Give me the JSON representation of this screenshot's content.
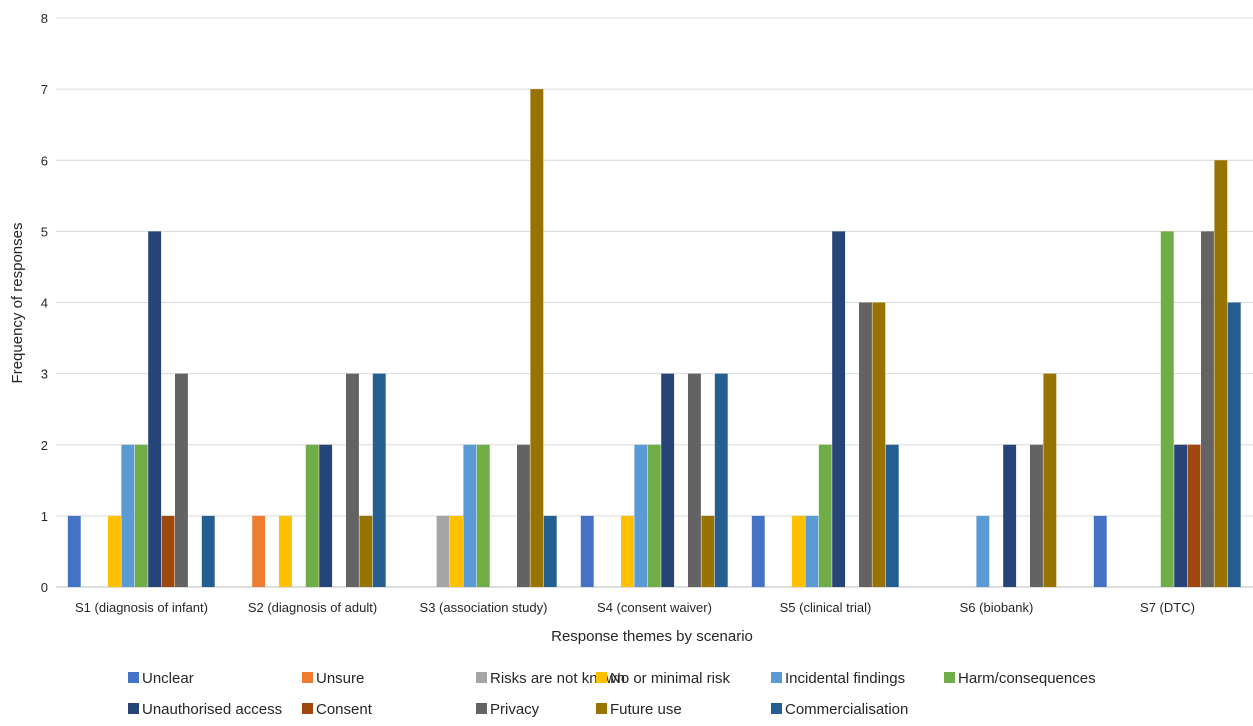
{
  "chart_data": {
    "type": "bar",
    "title": "",
    "xlabel": "Response themes by scenario",
    "ylabel": "Frequency of responses",
    "ylim": [
      0,
      8
    ],
    "yticks": [
      0,
      1,
      2,
      3,
      4,
      5,
      6,
      7,
      8
    ],
    "grid": true,
    "legend_position": "bottom",
    "categories": [
      "S1 (diagnosis of infant)",
      "S2 (diagnosis of adult)",
      "S3 (association study)",
      "S4 (consent waiver)",
      "S5 (clinical trial)",
      "S6 (biobank)",
      "S7 (DTC)"
    ],
    "series": [
      {
        "name": "Unclear",
        "color": "#4472C4",
        "values": [
          1,
          0,
          0,
          1,
          1,
          0,
          1
        ]
      },
      {
        "name": "Unsure",
        "color": "#ED7D31",
        "values": [
          0,
          1,
          0,
          0,
          0,
          0,
          0
        ]
      },
      {
        "name": "Risks are not known",
        "color": "#A5A5A5",
        "values": [
          0,
          0,
          1,
          0,
          0,
          0,
          0
        ]
      },
      {
        "name": "No or minimal risk",
        "color": "#FFC000",
        "values": [
          1,
          1,
          1,
          1,
          1,
          0,
          0
        ]
      },
      {
        "name": "Incidental findings",
        "color": "#5B9BD5",
        "values": [
          2,
          0,
          2,
          2,
          1,
          1,
          0
        ]
      },
      {
        "name": "Harm/consequences",
        "color": "#70AD47",
        "values": [
          2,
          2,
          2,
          2,
          2,
          0,
          5
        ]
      },
      {
        "name": "Unauthorised access",
        "color": "#264478",
        "values": [
          5,
          2,
          0,
          3,
          5,
          2,
          2
        ]
      },
      {
        "name": "Consent",
        "color": "#9E480E",
        "values": [
          1,
          0,
          0,
          0,
          0,
          0,
          2
        ]
      },
      {
        "name": "Privacy",
        "color": "#636363",
        "values": [
          3,
          3,
          2,
          3,
          4,
          2,
          5
        ]
      },
      {
        "name": "Future use",
        "color": "#997300",
        "values": [
          0,
          1,
          7,
          1,
          4,
          3,
          6
        ]
      },
      {
        "name": "Commercialisation",
        "color": "#255E91",
        "values": [
          1,
          3,
          1,
          3,
          2,
          0,
          4
        ]
      }
    ]
  }
}
